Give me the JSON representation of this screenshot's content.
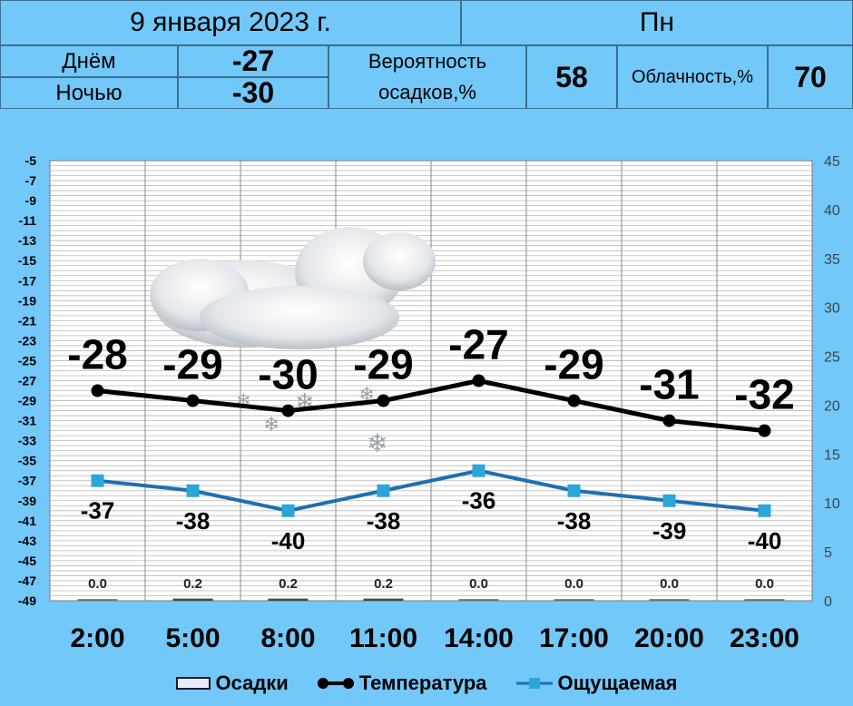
{
  "header": {
    "date": "9 января 2023 г.",
    "weekday": "Пн",
    "day_label": "Днём",
    "day_temp": "-27",
    "night_label": "Ночью",
    "night_temp": "-30",
    "precip_prob_label_1": "Вероятность",
    "precip_prob_label_2": "осадков,%",
    "precip_prob_value": "58",
    "cloud_label": "Облачность,%",
    "cloud_value": "70"
  },
  "chart_data": {
    "type": "line",
    "categories": [
      "2:00",
      "5:00",
      "8:00",
      "11:00",
      "14:00",
      "17:00",
      "20:00",
      "23:00"
    ],
    "series": [
      {
        "name": "Температура",
        "values": [
          -28,
          -29,
          -30,
          -29,
          -27,
          -29,
          -31,
          -32
        ],
        "color": "#000000",
        "marker": "circle"
      },
      {
        "name": "Ощущаемая",
        "values": [
          -37,
          -38,
          -40,
          -38,
          -36,
          -38,
          -39,
          -40
        ],
        "color": "#1f6fb0",
        "marker": "square"
      },
      {
        "name": "Осадки",
        "values": [
          0.0,
          0.2,
          0.2,
          0.2,
          0.0,
          0.0,
          0.0,
          0.0
        ],
        "type": "bar",
        "axis": "right"
      }
    ],
    "precip_labels": [
      "0.0",
      "0.2",
      "0.2",
      "0.2",
      "0.0",
      "0.0",
      "0.0",
      "0.0"
    ],
    "y_left": {
      "min": -49,
      "max": -5,
      "ticks": [
        -5,
        -7,
        -9,
        -11,
        -13,
        -15,
        -17,
        -19,
        -21,
        -23,
        -25,
        -27,
        -29,
        -31,
        -33,
        -35,
        -37,
        -39,
        -41,
        -43,
        -45,
        -47,
        -49
      ]
    },
    "y_right": {
      "min": 0,
      "max": 45,
      "ticks": [
        0,
        5,
        10,
        15,
        20,
        25,
        30,
        35,
        40,
        45
      ]
    },
    "grid": true,
    "legend_position": "bottom"
  },
  "colors": {
    "background": "#72c8f8",
    "plot_bg": "#ffffff",
    "temp": "#000000",
    "feels": "#1f6fb0",
    "feels_marker": "#2aa6d8"
  },
  "legend": {
    "precip": "Осадки",
    "temp": "Температура",
    "feels": "Ощущаемая"
  },
  "icons": [
    "cloud-snow-icon"
  ]
}
